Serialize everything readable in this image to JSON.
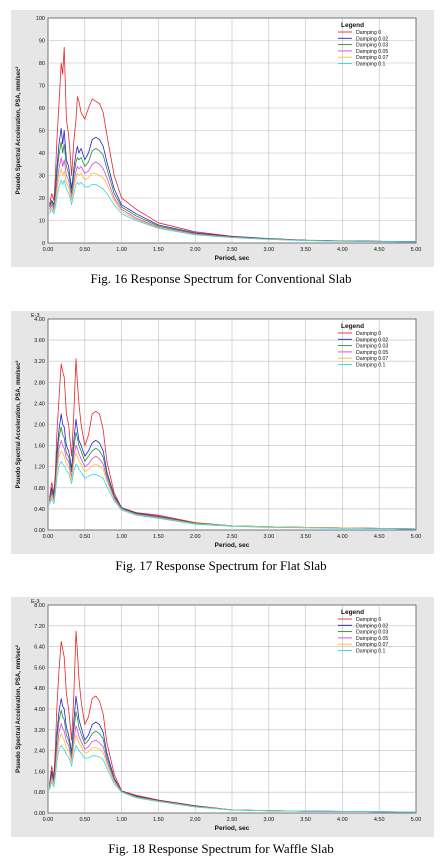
{
  "colors": {
    "series": [
      "#e8262b",
      "#2323c8",
      "#1f8a3a",
      "#e040e0",
      "#f2c230",
      "#38d6e0"
    ],
    "panel_background": "#e6e6e6",
    "plot_background": "#ffffff",
    "grid": "#bcbcbc"
  },
  "figures": [
    {
      "caption": "Fig. 16 Response Spectrum for Conventional Slab",
      "chart_data": {
        "type": "line",
        "xlabel": "Period, sec",
        "ylabel": "Psuedo Spectral Acceleration, PSA, mm/sec²",
        "exponent_label": "",
        "legend_title": "Legend",
        "legend_position": "top-right",
        "grid": true,
        "xlim": [
          0,
          5
        ],
        "ylim": [
          0,
          100
        ],
        "x_ticks": [
          "0.00",
          "0.50",
          "1.00",
          "1.50",
          "2.00",
          "2.50",
          "3.00",
          "3.50",
          "4.00",
          "4.50",
          "5.00"
        ],
        "y_ticks": [
          "0",
          "10",
          "20",
          "30",
          "40",
          "50",
          "60",
          "70",
          "80",
          "90",
          "100"
        ],
        "x": [
          0.02,
          0.05,
          0.08,
          0.1,
          0.12,
          0.15,
          0.18,
          0.2,
          0.22,
          0.25,
          0.28,
          0.3,
          0.32,
          0.35,
          0.38,
          0.4,
          0.42,
          0.45,
          0.5,
          0.55,
          0.6,
          0.65,
          0.7,
          0.75,
          0.8,
          0.9,
          1.0,
          1.2,
          1.5,
          2.0,
          2.5,
          3.0,
          3.5,
          4.0,
          4.5,
          5.0
        ],
        "series": [
          {
            "name": "Damping 0",
            "values": [
              17,
              22,
              19,
              30,
              45,
              62,
              80,
              75,
              87,
              55,
              48,
              40,
              30,
              45,
              55,
              65,
              63,
              58,
              55,
              60,
              64,
              63,
              62,
              58,
              48,
              30,
              20,
              15,
              9,
              5,
              3,
              2,
              1.3,
              1,
              0.8,
              0.6
            ]
          },
          {
            "name": "Damping 0.02",
            "values": [
              16,
              19,
              17,
              24,
              33,
              44,
              51,
              44,
              50,
              37,
              34,
              29,
              24,
              33,
              40,
              43,
              40,
              42,
              37,
              40,
              46,
              47,
              46,
              43,
              36,
              24,
              17,
              13,
              8,
              4.5,
              2.8,
              1.9,
              1.2,
              0.9,
              0.7,
              0.55
            ]
          },
          {
            "name": "Damping 0.03",
            "values": [
              16,
              18,
              16,
              22,
              30,
              39,
              45,
              40,
              44,
              34,
              31,
              27,
              22,
              30,
              36,
              38,
              37,
              38,
              34,
              36,
              41,
              42,
              41,
              39,
              33,
              22,
              16,
              12,
              7.5,
              4.2,
              2.7,
              1.8,
              1.2,
              0.9,
              0.7,
              0.55
            ]
          },
          {
            "name": "Damping 0.05",
            "values": [
              15,
              17,
              15,
              20,
              26,
              33,
              38,
              34,
              37,
              30,
              28,
              24,
              20,
              27,
              32,
              34,
              33,
              34,
              31,
              32,
              35,
              36,
              35,
              33,
              29,
              20,
              15,
              11,
              7,
              4,
              2.6,
              1.7,
              1.1,
              0.85,
              0.65,
              0.5
            ]
          },
          {
            "name": "Damping 0.07",
            "values": [
              14,
              16,
              14,
              18,
              23,
              29,
              33,
              30,
              32,
              27,
              25,
              22,
              19,
              25,
              29,
              31,
              30,
              31,
              28,
              29,
              31,
              31,
              30,
              29,
              26,
              19,
              14,
              10.5,
              6.8,
              3.8,
              2.5,
              1.7,
              1.1,
              0.8,
              0.6,
              0.5
            ]
          },
          {
            "name": "Damping 0.1",
            "values": [
              13,
              15,
              13,
              16,
              20,
              25,
              28,
              26,
              28,
              24,
              22,
              20,
              17,
              22,
              26,
              27,
              26,
              27,
              25,
              25,
              26,
              26,
              25,
              24,
              22,
              17,
              13,
              10,
              6.5,
              3.6,
              2.4,
              1.6,
              1.05,
              0.8,
              0.6,
              0.5
            ]
          }
        ]
      }
    },
    {
      "caption": "Fig. 17 Response Spectrum for Flat Slab",
      "chart_data": {
        "type": "line",
        "xlabel": "Period, sec",
        "ylabel": "Psuedo Spectral Acceleration, PSA, mm/sec²",
        "exponent_label": "E-3",
        "legend_title": "Legend",
        "legend_position": "top-right",
        "grid": true,
        "xlim": [
          0,
          5
        ],
        "ylim": [
          0,
          4.0
        ],
        "x_ticks": [
          "0.00",
          "0.50",
          "1.00",
          "1.50",
          "2.00",
          "2.50",
          "3.00",
          "3.50",
          "4.00",
          "4.50",
          "5.00"
        ],
        "y_ticks": [
          "0.00",
          "0.40",
          "0.80",
          "1.20",
          "1.60",
          "2.00",
          "2.40",
          "2.80",
          "3.20",
          "3.60",
          "4.00"
        ],
        "x": [
          0.02,
          0.05,
          0.08,
          0.1,
          0.12,
          0.15,
          0.18,
          0.2,
          0.22,
          0.25,
          0.28,
          0.3,
          0.32,
          0.35,
          0.38,
          0.4,
          0.42,
          0.45,
          0.5,
          0.55,
          0.6,
          0.65,
          0.7,
          0.75,
          0.8,
          0.9,
          1.0,
          1.2,
          1.5,
          2.0,
          2.5,
          3.0,
          3.5,
          4.0,
          4.5,
          5.0
        ],
        "series": [
          {
            "name": "Damping 0",
            "values": [
              0.6,
              0.9,
              0.7,
              1.1,
              1.8,
              2.5,
              3.15,
              3.0,
              2.9,
              2.2,
              2.0,
              1.7,
              1.4,
              2.2,
              3.25,
              2.8,
              2.4,
              2.0,
              1.6,
              1.8,
              2.2,
              2.25,
              2.2,
              1.9,
              1.3,
              0.7,
              0.42,
              0.33,
              0.28,
              0.14,
              0.08,
              0.06,
              0.05,
              0.04,
              0.03,
              0.02
            ]
          },
          {
            "name": "Damping 0.02",
            "values": [
              0.55,
              0.8,
              0.65,
              0.95,
              1.45,
              1.9,
              2.2,
              2.0,
              1.95,
              1.6,
              1.5,
              1.35,
              1.15,
              1.7,
              2.1,
              1.9,
              1.7,
              1.6,
              1.4,
              1.5,
              1.65,
              1.7,
              1.65,
              1.5,
              1.1,
              0.65,
              0.42,
              0.32,
              0.26,
              0.13,
              0.08,
              0.06,
              0.05,
              0.04,
              0.03,
              0.02
            ]
          },
          {
            "name": "Damping 0.03",
            "values": [
              0.55,
              0.75,
              0.62,
              0.9,
              1.35,
              1.75,
              1.95,
              1.8,
              1.75,
              1.45,
              1.4,
              1.25,
              1.1,
              1.55,
              1.85,
              1.75,
              1.6,
              1.5,
              1.3,
              1.4,
              1.5,
              1.55,
              1.5,
              1.38,
              1.05,
              0.62,
              0.41,
              0.31,
              0.25,
              0.13,
              0.08,
              0.06,
              0.05,
              0.04,
              0.03,
              0.02
            ]
          },
          {
            "name": "Damping 0.05",
            "values": [
              0.52,
              0.7,
              0.58,
              0.82,
              1.2,
              1.55,
              1.7,
              1.6,
              1.55,
              1.35,
              1.3,
              1.15,
              1.0,
              1.4,
              1.6,
              1.55,
              1.45,
              1.35,
              1.2,
              1.25,
              1.35,
              1.4,
              1.35,
              1.25,
              0.98,
              0.6,
              0.4,
              0.3,
              0.24,
              0.12,
              0.08,
              0.06,
              0.05,
              0.04,
              0.03,
              0.02
            ]
          },
          {
            "name": "Damping 0.07",
            "values": [
              0.5,
              0.65,
              0.55,
              0.76,
              1.1,
              1.4,
              1.5,
              1.45,
              1.4,
              1.25,
              1.2,
              1.08,
              0.95,
              1.28,
              1.45,
              1.4,
              1.32,
              1.25,
              1.1,
              1.15,
              1.22,
              1.25,
              1.22,
              1.15,
              0.92,
              0.58,
              0.39,
              0.29,
              0.23,
              0.12,
              0.08,
              0.06,
              0.05,
              0.04,
              0.03,
              0.02
            ]
          },
          {
            "name": "Damping 0.1",
            "values": [
              0.48,
              0.6,
              0.5,
              0.7,
              0.98,
              1.22,
              1.3,
              1.25,
              1.22,
              1.12,
              1.08,
              0.98,
              0.88,
              1.12,
              1.25,
              1.22,
              1.15,
              1.1,
              0.98,
              1.02,
              1.05,
              1.05,
              1.02,
              0.98,
              0.82,
              0.55,
              0.38,
              0.28,
              0.22,
              0.11,
              0.07,
              0.05,
              0.04,
              0.03,
              0.03,
              0.02
            ]
          }
        ]
      }
    },
    {
      "caption": "Fig. 18 Response Spectrum for Waffle Slab",
      "chart_data": {
        "type": "line",
        "xlabel": "Period, sec",
        "ylabel": "Psuedo Spectral Acceleration, PSA, mm/sec²",
        "exponent_label": "E-3",
        "legend_title": "Legend",
        "legend_position": "top-right",
        "grid": true,
        "xlim": [
          0,
          5
        ],
        "ylim": [
          0,
          8.0
        ],
        "x_ticks": [
          "0.00",
          "0.50",
          "1.00",
          "1.50",
          "2.00",
          "2.50",
          "3.00",
          "3.50",
          "4.00",
          "4.50",
          "5.00"
        ],
        "y_ticks": [
          "0.00",
          "0.80",
          "1.60",
          "2.40",
          "3.20",
          "4.00",
          "4.80",
          "5.60",
          "6.40",
          "7.20",
          "8.00"
        ],
        "x": [
          0.02,
          0.05,
          0.08,
          0.1,
          0.12,
          0.15,
          0.18,
          0.2,
          0.22,
          0.25,
          0.28,
          0.3,
          0.32,
          0.35,
          0.38,
          0.4,
          0.42,
          0.45,
          0.5,
          0.55,
          0.6,
          0.65,
          0.7,
          0.75,
          0.8,
          0.9,
          1.0,
          1.2,
          1.5,
          2.0,
          2.5,
          3.0,
          3.5,
          4.0,
          4.5,
          5.0
        ],
        "series": [
          {
            "name": "Damping 0",
            "values": [
              1.1,
              1.8,
              1.4,
              2.5,
              4.0,
              5.5,
              6.6,
              6.3,
              6.0,
              4.6,
              4.0,
              3.4,
              2.8,
              4.5,
              7.0,
              6.2,
              5.2,
              4.3,
              3.4,
              3.7,
              4.4,
              4.5,
              4.3,
              3.8,
              2.7,
              1.5,
              0.85,
              0.68,
              0.5,
              0.28,
              0.12,
              0.09,
              0.07,
              0.06,
              0.05,
              0.04
            ]
          },
          {
            "name": "Damping 0.02",
            "values": [
              1.0,
              1.6,
              1.3,
              2.0,
              3.0,
              3.9,
              4.4,
              4.1,
              4.0,
              3.3,
              3.0,
              2.7,
              2.3,
              3.5,
              4.5,
              4.1,
              3.6,
              3.3,
              2.8,
              3.0,
              3.4,
              3.5,
              3.4,
              3.1,
              2.3,
              1.35,
              0.84,
              0.65,
              0.48,
              0.27,
              0.12,
              0.09,
              0.07,
              0.06,
              0.05,
              0.04
            ]
          },
          {
            "name": "Damping 0.03",
            "values": [
              1.0,
              1.5,
              1.25,
              1.85,
              2.8,
              3.55,
              3.95,
              3.7,
              3.6,
              3.0,
              2.8,
              2.55,
              2.2,
              3.2,
              3.9,
              3.65,
              3.3,
              3.05,
              2.65,
              2.8,
              3.05,
              3.15,
              3.05,
              2.85,
              2.15,
              1.3,
              0.83,
              0.63,
              0.47,
              0.26,
              0.12,
              0.09,
              0.07,
              0.06,
              0.05,
              0.04
            ]
          },
          {
            "name": "Damping 0.05",
            "values": [
              0.95,
              1.4,
              1.15,
              1.7,
              2.45,
              3.1,
              3.45,
              3.25,
              3.15,
              2.75,
              2.6,
              2.35,
              2.05,
              2.85,
              3.35,
              3.2,
              2.95,
              2.75,
              2.45,
              2.55,
              2.75,
              2.8,
              2.7,
              2.55,
              2.0,
              1.25,
              0.82,
              0.61,
              0.46,
              0.25,
              0.12,
              0.09,
              0.07,
              0.06,
              0.05,
              0.04
            ]
          },
          {
            "name": "Damping 0.07",
            "values": [
              0.92,
              1.3,
              1.1,
              1.58,
              2.2,
              2.8,
              3.05,
              2.9,
              2.8,
              2.5,
              2.4,
              2.2,
              1.95,
              2.6,
              3.0,
              2.85,
              2.7,
              2.55,
              2.3,
              2.35,
              2.5,
              2.52,
              2.45,
              2.32,
              1.88,
              1.2,
              0.81,
              0.6,
              0.45,
              0.24,
              0.12,
              0.09,
              0.07,
              0.06,
              0.05,
              0.04
            ]
          },
          {
            "name": "Damping 0.1",
            "values": [
              0.88,
              1.2,
              1.0,
              1.45,
              1.95,
              2.45,
              2.6,
              2.5,
              2.45,
              2.25,
              2.15,
              2.0,
              1.8,
              2.3,
              2.6,
              2.5,
              2.4,
              2.3,
              2.1,
              2.12,
              2.2,
              2.2,
              2.15,
              2.05,
              1.72,
              1.12,
              0.8,
              0.58,
              0.44,
              0.23,
              0.11,
              0.08,
              0.07,
              0.06,
              0.05,
              0.04
            ]
          }
        ]
      }
    }
  ]
}
